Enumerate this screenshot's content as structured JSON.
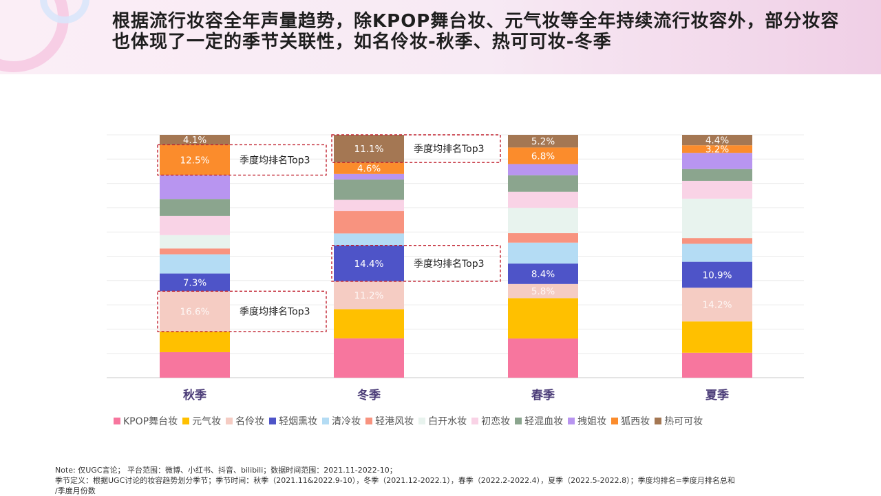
{
  "headline": "根据流行妆容全年声量趋势，除KPOP舞台妆、元气妆等全年持续流行妆容外，部分妆容也体现了一定的季节关联性，如名伶妆-秋季、热可可妆-冬季",
  "note": {
    "line1": "Note: 仅UGC言论； 平台范围：微博、小红书、抖音、bilibili；数据时间范围：2021.11-2022-10；",
    "line2": "季节定义：根据UGC讨论的妆容趋势划分季节；季节时间：秋季（2021.11&2022.9-10），冬季（2021.12-2022.1），春季（2022.2-2022.4），夏季（2022.5-2022.8）；季度均排名=季度月排名总和",
    "line3": "/季度月份数"
  },
  "chart_data": {
    "type": "bar",
    "stacked": true,
    "normalized_to": 100,
    "grid": true,
    "legend_position": "bottom",
    "categories": [
      "秋季",
      "冬季",
      "春季",
      "夏季"
    ],
    "series": [
      {
        "name": "KPOP舞台妆",
        "color": "#f7769e",
        "values": [
          10.5,
          15.8,
          16.1,
          10.5
        ]
      },
      {
        "name": "元气妆",
        "color": "#ffc000",
        "values": [
          8.5,
          11.7,
          16.6,
          13.2
        ]
      },
      {
        "name": "名伶妆",
        "color": "#f5ccc3",
        "values": [
          16.6,
          11.2,
          5.8,
          14.2
        ]
      },
      {
        "name": "轻烟熏妆",
        "color": "#4e54c8",
        "values": [
          7.3,
          14.4,
          8.4,
          10.9
        ]
      },
      {
        "name": "清冷妆",
        "color": "#b4dcf4",
        "values": [
          7.9,
          4.8,
          8.6,
          7.6
        ]
      },
      {
        "name": "轻港风妆",
        "color": "#f8937f",
        "values": [
          2.4,
          9.0,
          3.9,
          2.4
        ]
      },
      {
        "name": "白开水妆",
        "color": "#e8f3ee",
        "values": [
          5.5,
          0.0,
          10.4,
          16.6
        ]
      },
      {
        "name": "初恋妆",
        "color": "#f9d3e6",
        "values": [
          7.9,
          4.5,
          6.6,
          7.5
        ]
      },
      {
        "name": "轻混血妆",
        "color": "#8ba58e",
        "values": [
          7.0,
          8.2,
          6.8,
          5.0
        ]
      },
      {
        "name": "拽姐妆",
        "color": "#b895f0",
        "values": [
          9.8,
          2.2,
          4.6,
          6.8
        ]
      },
      {
        "name": "狐西妆",
        "color": "#fb8c2c",
        "values": [
          12.5,
          4.6,
          6.8,
          3.2
        ]
      },
      {
        "name": "热可可妆",
        "color": "#a47753",
        "values": [
          4.1,
          11.1,
          5.2,
          4.4
        ]
      }
    ],
    "data_labels": [
      {
        "category": "秋季",
        "series": "热可可妆",
        "text": "4.1%"
      },
      {
        "category": "秋季",
        "series": "狐西妆",
        "text": "12.5%"
      },
      {
        "category": "秋季",
        "series": "轻烟熏妆",
        "text": "7.3%"
      },
      {
        "category": "秋季",
        "series": "名伶妆",
        "text": "16.6%"
      },
      {
        "category": "冬季",
        "series": "热可可妆",
        "text": "11.1%"
      },
      {
        "category": "冬季",
        "series": "狐西妆",
        "text": "4.6%"
      },
      {
        "category": "冬季",
        "series": "轻烟熏妆",
        "text": "14.4%"
      },
      {
        "category": "冬季",
        "series": "名伶妆",
        "text": "11.2%"
      },
      {
        "category": "春季",
        "series": "热可可妆",
        "text": "5.2%"
      },
      {
        "category": "春季",
        "series": "狐西妆",
        "text": "6.8%"
      },
      {
        "category": "春季",
        "series": "轻烟熏妆",
        "text": "8.4%"
      },
      {
        "category": "春季",
        "series": "名伶妆",
        "text": "5.8%"
      },
      {
        "category": "夏季",
        "series": "热可可妆",
        "text": "4.4%"
      },
      {
        "category": "夏季",
        "series": "狐西妆",
        "text": "3.2%"
      },
      {
        "category": "夏季",
        "series": "轻烟熏妆",
        "text": "10.9%"
      },
      {
        "category": "夏季",
        "series": "名伶妆",
        "text": "14.2%"
      }
    ],
    "annotations": [
      {
        "category": "秋季",
        "series": [
          "狐西妆"
        ],
        "text": "季度均排名Top3"
      },
      {
        "category": "秋季",
        "series": [
          "名伶妆"
        ],
        "text": "季度均排名Top3"
      },
      {
        "category": "冬季",
        "series": [
          "热可可妆"
        ],
        "text": "季度均排名Top3"
      },
      {
        "category": "冬季",
        "series": [
          "轻烟熏妆"
        ],
        "text": "季度均排名Top3"
      }
    ]
  }
}
